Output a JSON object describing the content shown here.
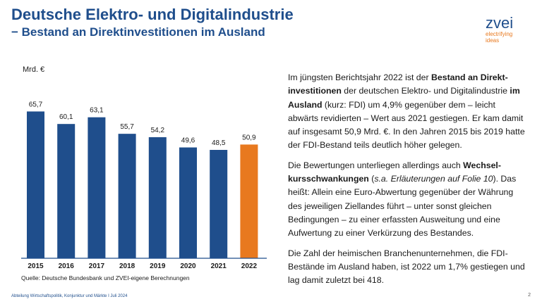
{
  "slide": {
    "title": "Deutsche Elektro- und Digitalindustrie",
    "subtitle": "− Bestand an Direktinvestitionen im Ausland",
    "logo_word": "zvei",
    "logo_tagline_1": "electrifying",
    "logo_tagline_2": "ideas",
    "source": "Quelle: Deutsche Bundesbank und ZVEI-eigene Berechnungen",
    "footer": "Abteilung Wirtschaftspolitik, Konjunktur und Märkte I Juli 2024",
    "page_number": "2"
  },
  "text": {
    "p1": {
      "a": "Im jüngsten Berichtsjahr 2022 ist der ",
      "b": "Bestand an Direkt-investitionen",
      "c": " der deutschen Elektro- und Digitalindustrie ",
      "d": "im Ausland",
      "e": " (kurz: FDI) um 4,9% gegenüber dem – leicht abwärts revidierten – Wert aus 2021 gestiegen. Er kam damit auf insgesamt 50,9 Mrd. €. In den Jahren 2015 bis 2019 hatte der FDI-Bestand teils deutlich höher gelegen."
    },
    "p2": {
      "a": "Die Bewertungen unterliegen allerdings auch ",
      "b": "Wechsel-kursschwankungen",
      "c": " (",
      "d": "s.a. Erläuterungen auf Folie 10",
      "e": "). Das heißt: Allein eine Euro-Abwertung gegenüber der Währung des jeweiligen Ziellandes führt – unter sonst gleichen Bedingungen – zu einer erfassten Ausweitung und eine Aufwertung zu einer Verkürzung des Bestandes."
    },
    "p3": "Die Zahl der heimischen Branchenunternehmen, die FDI-Bestände im Ausland haben, ist 2022 um 1,7% gestiegen und lag damit zuletzt bei 418."
  },
  "chart_data": {
    "type": "bar",
    "ylabel": "Mrd. €",
    "categories": [
      "2015",
      "2016",
      "2017",
      "2018",
      "2019",
      "2020",
      "2021",
      "2022"
    ],
    "values": [
      65.7,
      60.1,
      63.1,
      55.7,
      54.2,
      49.6,
      48.5,
      50.9
    ],
    "value_labels": [
      "65,7",
      "60,1",
      "63,1",
      "55,7",
      "54,2",
      "49,6",
      "48,5",
      "50,9"
    ],
    "ylim": [
      0,
      80
    ],
    "grid": false,
    "colors": {
      "default": "#1f4e8c",
      "highlight": "#e8791f"
    },
    "highlight_index": 7
  }
}
